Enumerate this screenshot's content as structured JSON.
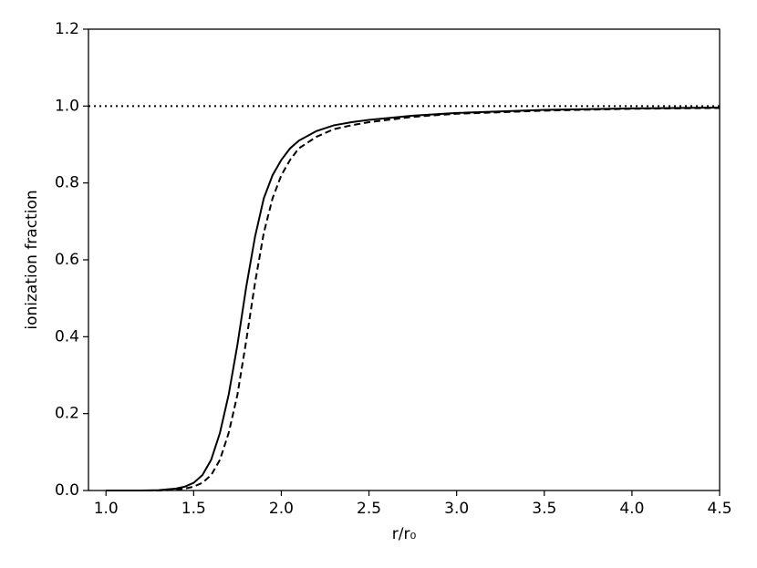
{
  "chart_data": {
    "type": "line",
    "xlabel": "r/r₀",
    "ylabel": "ionization fraction",
    "x": [
      1.0,
      1.1,
      1.2,
      1.3,
      1.4,
      1.45,
      1.5,
      1.55,
      1.6,
      1.65,
      1.7,
      1.75,
      1.8,
      1.85,
      1.9,
      1.95,
      2.0,
      2.05,
      2.1,
      2.2,
      2.3,
      2.4,
      2.5,
      2.75,
      3.0,
      3.5,
      4.0,
      4.5
    ],
    "series": [
      {
        "color": "#000000",
        "linestyle": "solid",
        "values": [
          0,
          0,
          0,
          0.001,
          0.005,
          0.01,
          0.02,
          0.04,
          0.08,
          0.15,
          0.25,
          0.38,
          0.53,
          0.66,
          0.76,
          0.82,
          0.86,
          0.89,
          0.91,
          0.935,
          0.95,
          0.958,
          0.964,
          0.975,
          0.982,
          0.99,
          0.994,
          0.996
        ]
      },
      {
        "color": "#000000",
        "linestyle": "dashed",
        "values": [
          0,
          0,
          0,
          0,
          0.002,
          0.005,
          0.01,
          0.02,
          0.04,
          0.08,
          0.15,
          0.25,
          0.39,
          0.54,
          0.67,
          0.76,
          0.82,
          0.86,
          0.89,
          0.92,
          0.94,
          0.95,
          0.958,
          0.972,
          0.98,
          0.988,
          0.993,
          0.995
        ]
      },
      {
        "color": "#000000",
        "linestyle": "dotted",
        "x": [
          0.9,
          4.5
        ],
        "values": [
          1,
          1
        ]
      }
    ],
    "xlim": [
      0.9,
      4.5
    ],
    "xticks": [
      {
        "value": 1,
        "label": "1.0"
      },
      1.5,
      {
        "value": 2,
        "label": "2.0"
      },
      2.5,
      {
        "value": 3,
        "label": "3.0"
      },
      3.5,
      {
        "value": 4,
        "label": "4.0"
      },
      4.5
    ],
    "ylim": [
      0,
      1.2
    ],
    "yticks": [
      {
        "value": 0,
        "label": "0.0"
      },
      0.2,
      0.4,
      0.6,
      0.8,
      {
        "value": 1,
        "label": "1.0"
      },
      1.2
    ],
    "grid": false
  }
}
